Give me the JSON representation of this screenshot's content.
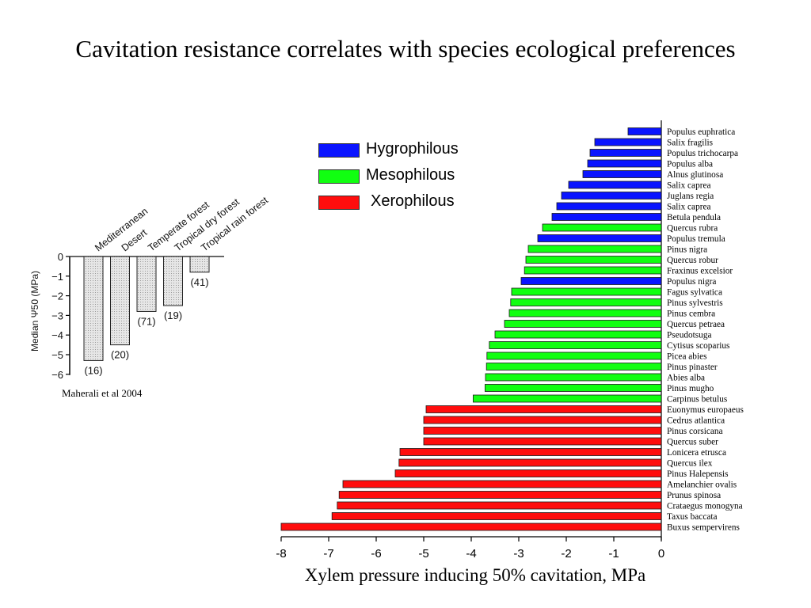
{
  "title": "Cavitation resistance correlates with species ecological preferences",
  "citation": "Maherali et al 2004",
  "chart_data": [
    {
      "type": "bar",
      "orientation": "vertical",
      "categories": [
        "Mediterranean",
        "Desert",
        "Temperate forest",
        "Tropical dry forest",
        "Tropical rain forest"
      ],
      "values": [
        -5.3,
        -4.5,
        -2.8,
        -2.5,
        -0.8
      ],
      "counts": [
        "(16)",
        "(20)",
        "(71)",
        "(19)",
        "(41)"
      ],
      "ylabel": "Median Ψ50 (MPa)",
      "ylim": [
        -6,
        0
      ],
      "yticks": [
        "0",
        "−1",
        "−2",
        "−3",
        "−4",
        "−5",
        "−6"
      ],
      "bar_color": "#e6e6e6"
    },
    {
      "type": "bar",
      "orientation": "horizontal",
      "xlabel": "Xylem pressure inducing 50% cavitation, MPa",
      "xlim": [
        -8,
        0
      ],
      "xticks": [
        "-8",
        "-7",
        "-6",
        "-5",
        "-4",
        "-3",
        "-2",
        "-1",
        "0"
      ],
      "legend_position": "top-center",
      "groups": [
        {
          "name": "Hygrophilous",
          "color": "#0a14ff"
        },
        {
          "name": "Mesophilous",
          "color": "#11ff11"
        },
        {
          "name": "Xerophilous",
          "color": "#ff0d0d"
        }
      ],
      "bars": [
        {
          "species": "Populus euphratica",
          "value": -0.7,
          "group": 0
        },
        {
          "species": "Salix fragilis",
          "value": -1.4,
          "group": 0
        },
        {
          "species": "Populus trichocarpa",
          "value": -1.5,
          "group": 0
        },
        {
          "species": "Populus alba",
          "value": -1.55,
          "group": 0
        },
        {
          "species": "Alnus glutinosa",
          "value": -1.65,
          "group": 0
        },
        {
          "species": "Salix caprea",
          "value": -1.95,
          "group": 0
        },
        {
          "species": "Juglans regia",
          "value": -2.1,
          "group": 0
        },
        {
          "species": "Salix caprea",
          "value": -2.2,
          "group": 0
        },
        {
          "species": "Betula pendula",
          "value": -2.3,
          "group": 0
        },
        {
          "species": "Quercus rubra",
          "value": -2.5,
          "group": 1
        },
        {
          "species": "Populus tremula",
          "value": -2.6,
          "group": 0
        },
        {
          "species": "Pinus nigra",
          "value": -2.8,
          "group": 1
        },
        {
          "species": "Quercus robur",
          "value": -2.85,
          "group": 1
        },
        {
          "species": "Fraxinus excelsior",
          "value": -2.88,
          "group": 1
        },
        {
          "species": "Populus nigra",
          "value": -2.95,
          "group": 0
        },
        {
          "species": "Fagus sylvatica",
          "value": -3.15,
          "group": 1
        },
        {
          "species": "Pinus sylvestris",
          "value": -3.17,
          "group": 1
        },
        {
          "species": "Pinus cembra",
          "value": -3.2,
          "group": 1
        },
        {
          "species": "Quercus petraea",
          "value": -3.3,
          "group": 1
        },
        {
          "species": "Pseudotsuga",
          "value": -3.5,
          "group": 1
        },
        {
          "species": "Cytisus scoparius",
          "value": -3.62,
          "group": 1
        },
        {
          "species": "Picea abies",
          "value": -3.67,
          "group": 1
        },
        {
          "species": "Pinus pinaster",
          "value": -3.68,
          "group": 1
        },
        {
          "species": "Abies alba",
          "value": -3.7,
          "group": 1
        },
        {
          "species": "Pinus mugho",
          "value": -3.71,
          "group": 1
        },
        {
          "species": "Carpinus betulus",
          "value": -3.96,
          "group": 1
        },
        {
          "species": "Euonymus europaeus",
          "value": -4.95,
          "group": 2
        },
        {
          "species": "Cedrus atlantica",
          "value": -5.0,
          "group": 2
        },
        {
          "species": "Pinus corsicana",
          "value": -5.0,
          "group": 2
        },
        {
          "species": "Quercus suber",
          "value": -5.0,
          "group": 2
        },
        {
          "species": "Lonicera etrusca",
          "value": -5.5,
          "group": 2
        },
        {
          "species": "Quercus ilex",
          "value": -5.52,
          "group": 2
        },
        {
          "species": "Pinus Halepensis",
          "value": -5.6,
          "group": 2
        },
        {
          "species": "Amelanchier ovalis",
          "value": -6.7,
          "group": 2
        },
        {
          "species": "Prunus spinosa",
          "value": -6.78,
          "group": 2
        },
        {
          "species": "Crataegus monogyna",
          "value": -6.82,
          "group": 2
        },
        {
          "species": "Taxus baccata",
          "value": -6.93,
          "group": 2
        },
        {
          "species": "Buxus sempervirens",
          "value": -8.0,
          "group": 2
        }
      ]
    }
  ]
}
